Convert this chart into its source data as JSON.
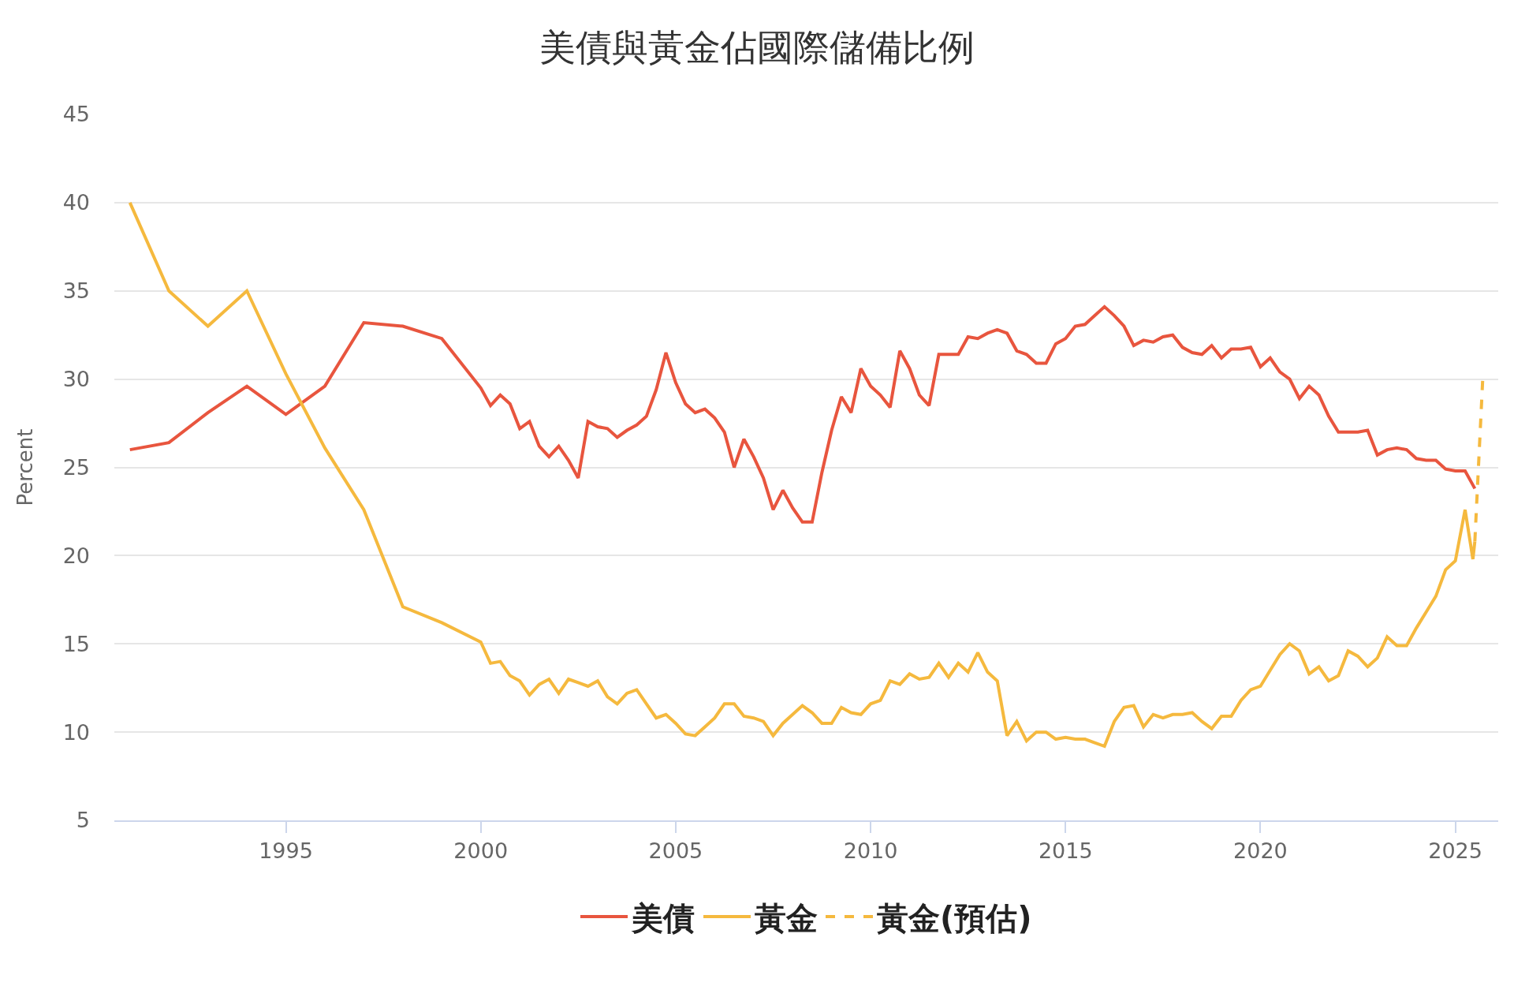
{
  "chart_data": {
    "type": "line",
    "title": "美債與黃金佔國際儲備比例",
    "ylabel": "Percent",
    "xlim": [
      1990.6,
      2026.1
    ],
    "xticks": [
      1995,
      2000,
      2005,
      2010,
      2015,
      2020,
      2025
    ],
    "ylim": [
      5,
      45
    ],
    "yticks": [
      5,
      10,
      15,
      20,
      25,
      30,
      35,
      40,
      45
    ],
    "grid": "y",
    "legend": "bottom",
    "marker": "none",
    "series": [
      {
        "name": "美債",
        "color": "#e8553e",
        "line_style": "solid",
        "x": [
          1991,
          1992,
          1993,
          1994,
          1995,
          1996,
          1997,
          1998,
          1999,
          2000,
          2000.25,
          2000.5,
          2000.75,
          2001,
          2001.25,
          2001.5,
          2001.75,
          2002,
          2002.25,
          2002.5,
          2002.75,
          2003,
          2003.25,
          2003.5,
          2003.75,
          2004,
          2004.25,
          2004.5,
          2004.75,
          2005,
          2005.25,
          2005.5,
          2005.75,
          2006,
          2006.25,
          2006.5,
          2006.75,
          2007,
          2007.25,
          2007.5,
          2007.75,
          2008,
          2008.25,
          2008.5,
          2008.75,
          2009,
          2009.25,
          2009.5,
          2009.75,
          2010,
          2010.25,
          2010.5,
          2010.75,
          2011,
          2011.25,
          2011.5,
          2011.75,
          2012,
          2012.25,
          2012.5,
          2012.75,
          2013,
          2013.25,
          2013.5,
          2013.75,
          2014,
          2014.25,
          2014.5,
          2014.75,
          2015,
          2015.25,
          2015.5,
          2015.75,
          2016,
          2016.25,
          2016.5,
          2016.75,
          2017,
          2017.25,
          2017.5,
          2017.75,
          2018,
          2018.25,
          2018.5,
          2018.75,
          2019,
          2019.25,
          2019.5,
          2019.75,
          2020,
          2020.25,
          2020.5,
          2020.75,
          2021,
          2021.25,
          2021.5,
          2021.75,
          2022,
          2022.25,
          2022.5,
          2022.75,
          2023,
          2023.25,
          2023.5,
          2023.75,
          2024,
          2024.25,
          2024.5,
          2024.75,
          2025,
          2025.25,
          2025.5
        ],
        "values": [
          26.0,
          26.4,
          28.1,
          29.6,
          28.0,
          29.6,
          33.2,
          33.0,
          32.3,
          29.5,
          28.5,
          29.1,
          28.6,
          27.2,
          27.6,
          26.2,
          25.6,
          26.2,
          25.4,
          24.4,
          27.6,
          27.3,
          27.2,
          26.7,
          27.1,
          27.4,
          27.9,
          29.4,
          31.5,
          29.8,
          28.6,
          28.1,
          28.3,
          27.8,
          27.0,
          25.0,
          26.6,
          25.6,
          24.4,
          22.6,
          23.7,
          22.7,
          21.9,
          21.9,
          24.7,
          27.1,
          29.0,
          28.1,
          30.6,
          29.6,
          29.1,
          28.4,
          31.6,
          30.6,
          29.1,
          28.5,
          31.4,
          31.4,
          31.4,
          32.4,
          32.3,
          32.6,
          32.8,
          32.6,
          31.6,
          31.4,
          30.9,
          30.9,
          32.0,
          32.3,
          33.0,
          33.1,
          33.6,
          34.1,
          33.6,
          33.0,
          31.9,
          32.2,
          32.1,
          32.4,
          32.5,
          31.8,
          31.5,
          31.4,
          31.9,
          31.2,
          31.7,
          31.7,
          31.8,
          30.7,
          31.2,
          30.4,
          30.0,
          28.9,
          29.6,
          29.1,
          27.9,
          27.0,
          27.0,
          27.0,
          27.1,
          25.7,
          26.0,
          26.1,
          26.0,
          25.5,
          25.4,
          25.4,
          24.9,
          24.8,
          24.8,
          23.8
        ]
      },
      {
        "name": "黃金",
        "color": "#f5b93e",
        "line_style": "solid",
        "x": [
          1991,
          1992,
          1993,
          1994,
          1995,
          1996,
          1997,
          1998,
          1999,
          2000,
          2000.25,
          2000.5,
          2000.75,
          2001,
          2001.25,
          2001.5,
          2001.75,
          2002,
          2002.25,
          2002.5,
          2002.75,
          2003,
          2003.25,
          2003.5,
          2003.75,
          2004,
          2004.25,
          2004.5,
          2004.75,
          2005,
          2005.25,
          2005.5,
          2005.75,
          2006,
          2006.25,
          2006.5,
          2006.75,
          2007,
          2007.25,
          2007.5,
          2007.75,
          2008,
          2008.25,
          2008.5,
          2008.75,
          2009,
          2009.25,
          2009.5,
          2009.75,
          2010,
          2010.25,
          2010.5,
          2010.75,
          2011,
          2011.25,
          2011.5,
          2011.75,
          2012,
          2012.25,
          2012.5,
          2012.75,
          2013,
          2013.25,
          2013.5,
          2013.75,
          2014,
          2014.25,
          2014.5,
          2014.75,
          2015,
          2015.25,
          2015.5,
          2015.75,
          2016,
          2016.25,
          2016.5,
          2016.75,
          2017,
          2017.25,
          2017.5,
          2017.75,
          2018,
          2018.25,
          2018.5,
          2018.75,
          2019,
          2019.25,
          2019.5,
          2019.75,
          2020,
          2020.25,
          2020.5,
          2020.75,
          2021,
          2021.25,
          2021.5,
          2021.75,
          2022,
          2022.25,
          2022.5,
          2022.75,
          2023,
          2023.25,
          2023.5,
          2023.75,
          2024,
          2024.25,
          2024.5,
          2024.75,
          2025,
          2025.25,
          2025.45,
          2025.5
        ],
        "values": [
          40.0,
          35.0,
          33.0,
          35.0,
          30.3,
          26.1,
          22.6,
          17.1,
          16.2,
          15.1,
          13.9,
          14.0,
          13.2,
          12.9,
          12.1,
          12.7,
          13.0,
          12.2,
          13.0,
          12.8,
          12.6,
          12.9,
          12.0,
          11.6,
          12.2,
          12.4,
          11.6,
          10.8,
          11.0,
          10.5,
          9.9,
          9.8,
          10.3,
          10.8,
          11.6,
          11.6,
          10.9,
          10.8,
          10.6,
          9.8,
          10.5,
          11.0,
          11.5,
          11.1,
          10.5,
          10.5,
          11.4,
          11.1,
          11.0,
          11.6,
          11.8,
          12.9,
          12.7,
          13.3,
          13.0,
          13.1,
          13.9,
          13.1,
          13.9,
          13.4,
          14.5,
          13.4,
          12.9,
          9.8,
          10.6,
          9.5,
          10.0,
          10.0,
          9.6,
          9.7,
          9.6,
          9.6,
          9.4,
          9.2,
          10.6,
          11.4,
          11.5,
          10.3,
          11.0,
          10.8,
          11.0,
          11.0,
          11.1,
          10.6,
          10.2,
          10.9,
          10.9,
          11.8,
          12.4,
          12.6,
          13.5,
          14.4,
          15.0,
          14.6,
          13.3,
          13.7,
          12.9,
          13.2,
          14.6,
          14.3,
          13.7,
          14.2,
          15.4,
          14.9,
          14.9,
          15.9,
          16.8,
          17.7,
          19.2,
          19.7,
          22.6,
          19.8,
          20.8
        ]
      },
      {
        "name": "黃金(預估)",
        "color": "#f5b93e",
        "line_style": "dashed",
        "x": [
          2025.5,
          2025.7
        ],
        "values": [
          20.8,
          29.9
        ]
      }
    ]
  }
}
